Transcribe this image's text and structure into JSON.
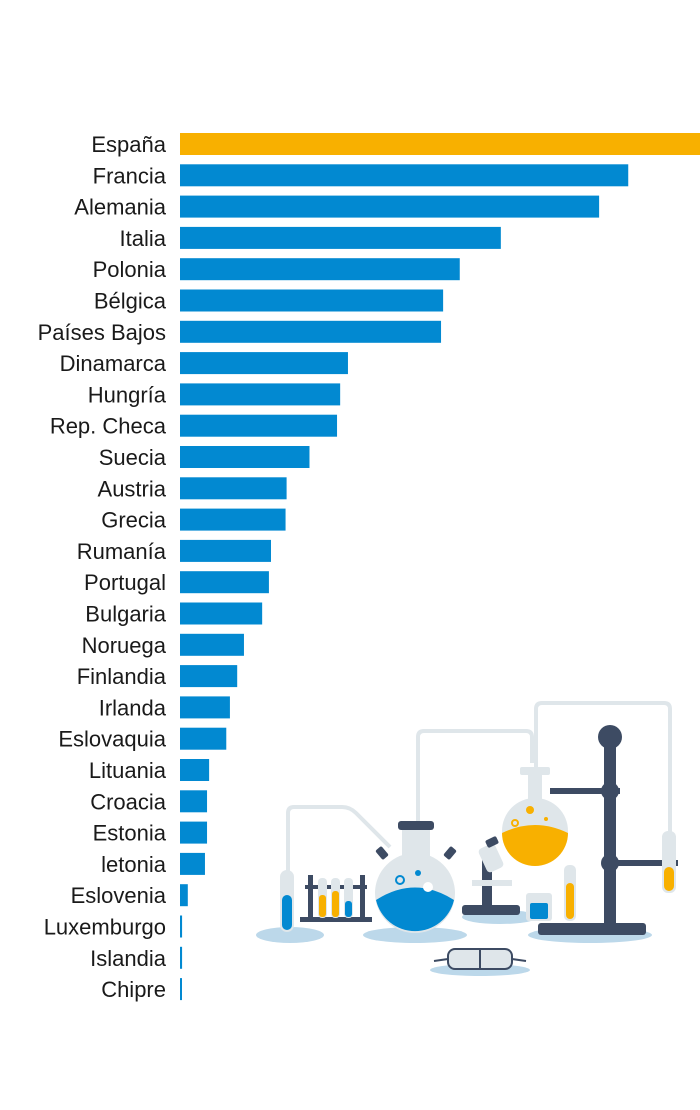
{
  "chart_data": {
    "type": "bar",
    "orientation": "horizontal",
    "categories": [
      "España",
      "Francia",
      "Alemania",
      "Italia",
      "Polonia",
      "Bélgica",
      "Países Bajos",
      "Dinamarca",
      "Hungría",
      "Rep. Checa",
      "Suecia",
      "Austria",
      "Grecia",
      "Rumanía",
      "Portugal",
      "Bulgaria",
      "Noruega",
      "Finlandia",
      "Irlanda",
      "Eslovaquia",
      "Lituania",
      "Croacia",
      "Estonia",
      "letonia",
      "Eslovenia",
      "Luxemburgo",
      "Islandia",
      "Chipre"
    ],
    "values": [
      100,
      86.2,
      80.6,
      61.7,
      53.8,
      50.6,
      50.2,
      32.3,
      30.8,
      30.2,
      24.9,
      20.5,
      20.3,
      17.5,
      17.1,
      15.8,
      12.3,
      11.0,
      9.6,
      8.9,
      5.6,
      5.2,
      5.2,
      4.8,
      1.5,
      0.4,
      0.4,
      0.3
    ],
    "highlight": "España",
    "colors": {
      "default": "#0289d1",
      "highlight": "#f8b000"
    },
    "xlim": [
      0,
      100
    ],
    "title": "",
    "xlabel": "",
    "ylabel": "",
    "grid": false,
    "legend": "none"
  },
  "illustration": {
    "icons": [
      "test-tube-icon",
      "test-tube-rack-icon",
      "round-flask-icon",
      "microscope-icon",
      "beaker-icon",
      "hanging-flask-icon",
      "retort-stand-icon",
      "safety-goggles-icon"
    ],
    "colors": {
      "dark": "#3d4b63",
      "blue": "#0289d1",
      "yellow": "#f8b000",
      "light": "#dfe6ea",
      "pale": "#bcd8ea"
    }
  }
}
